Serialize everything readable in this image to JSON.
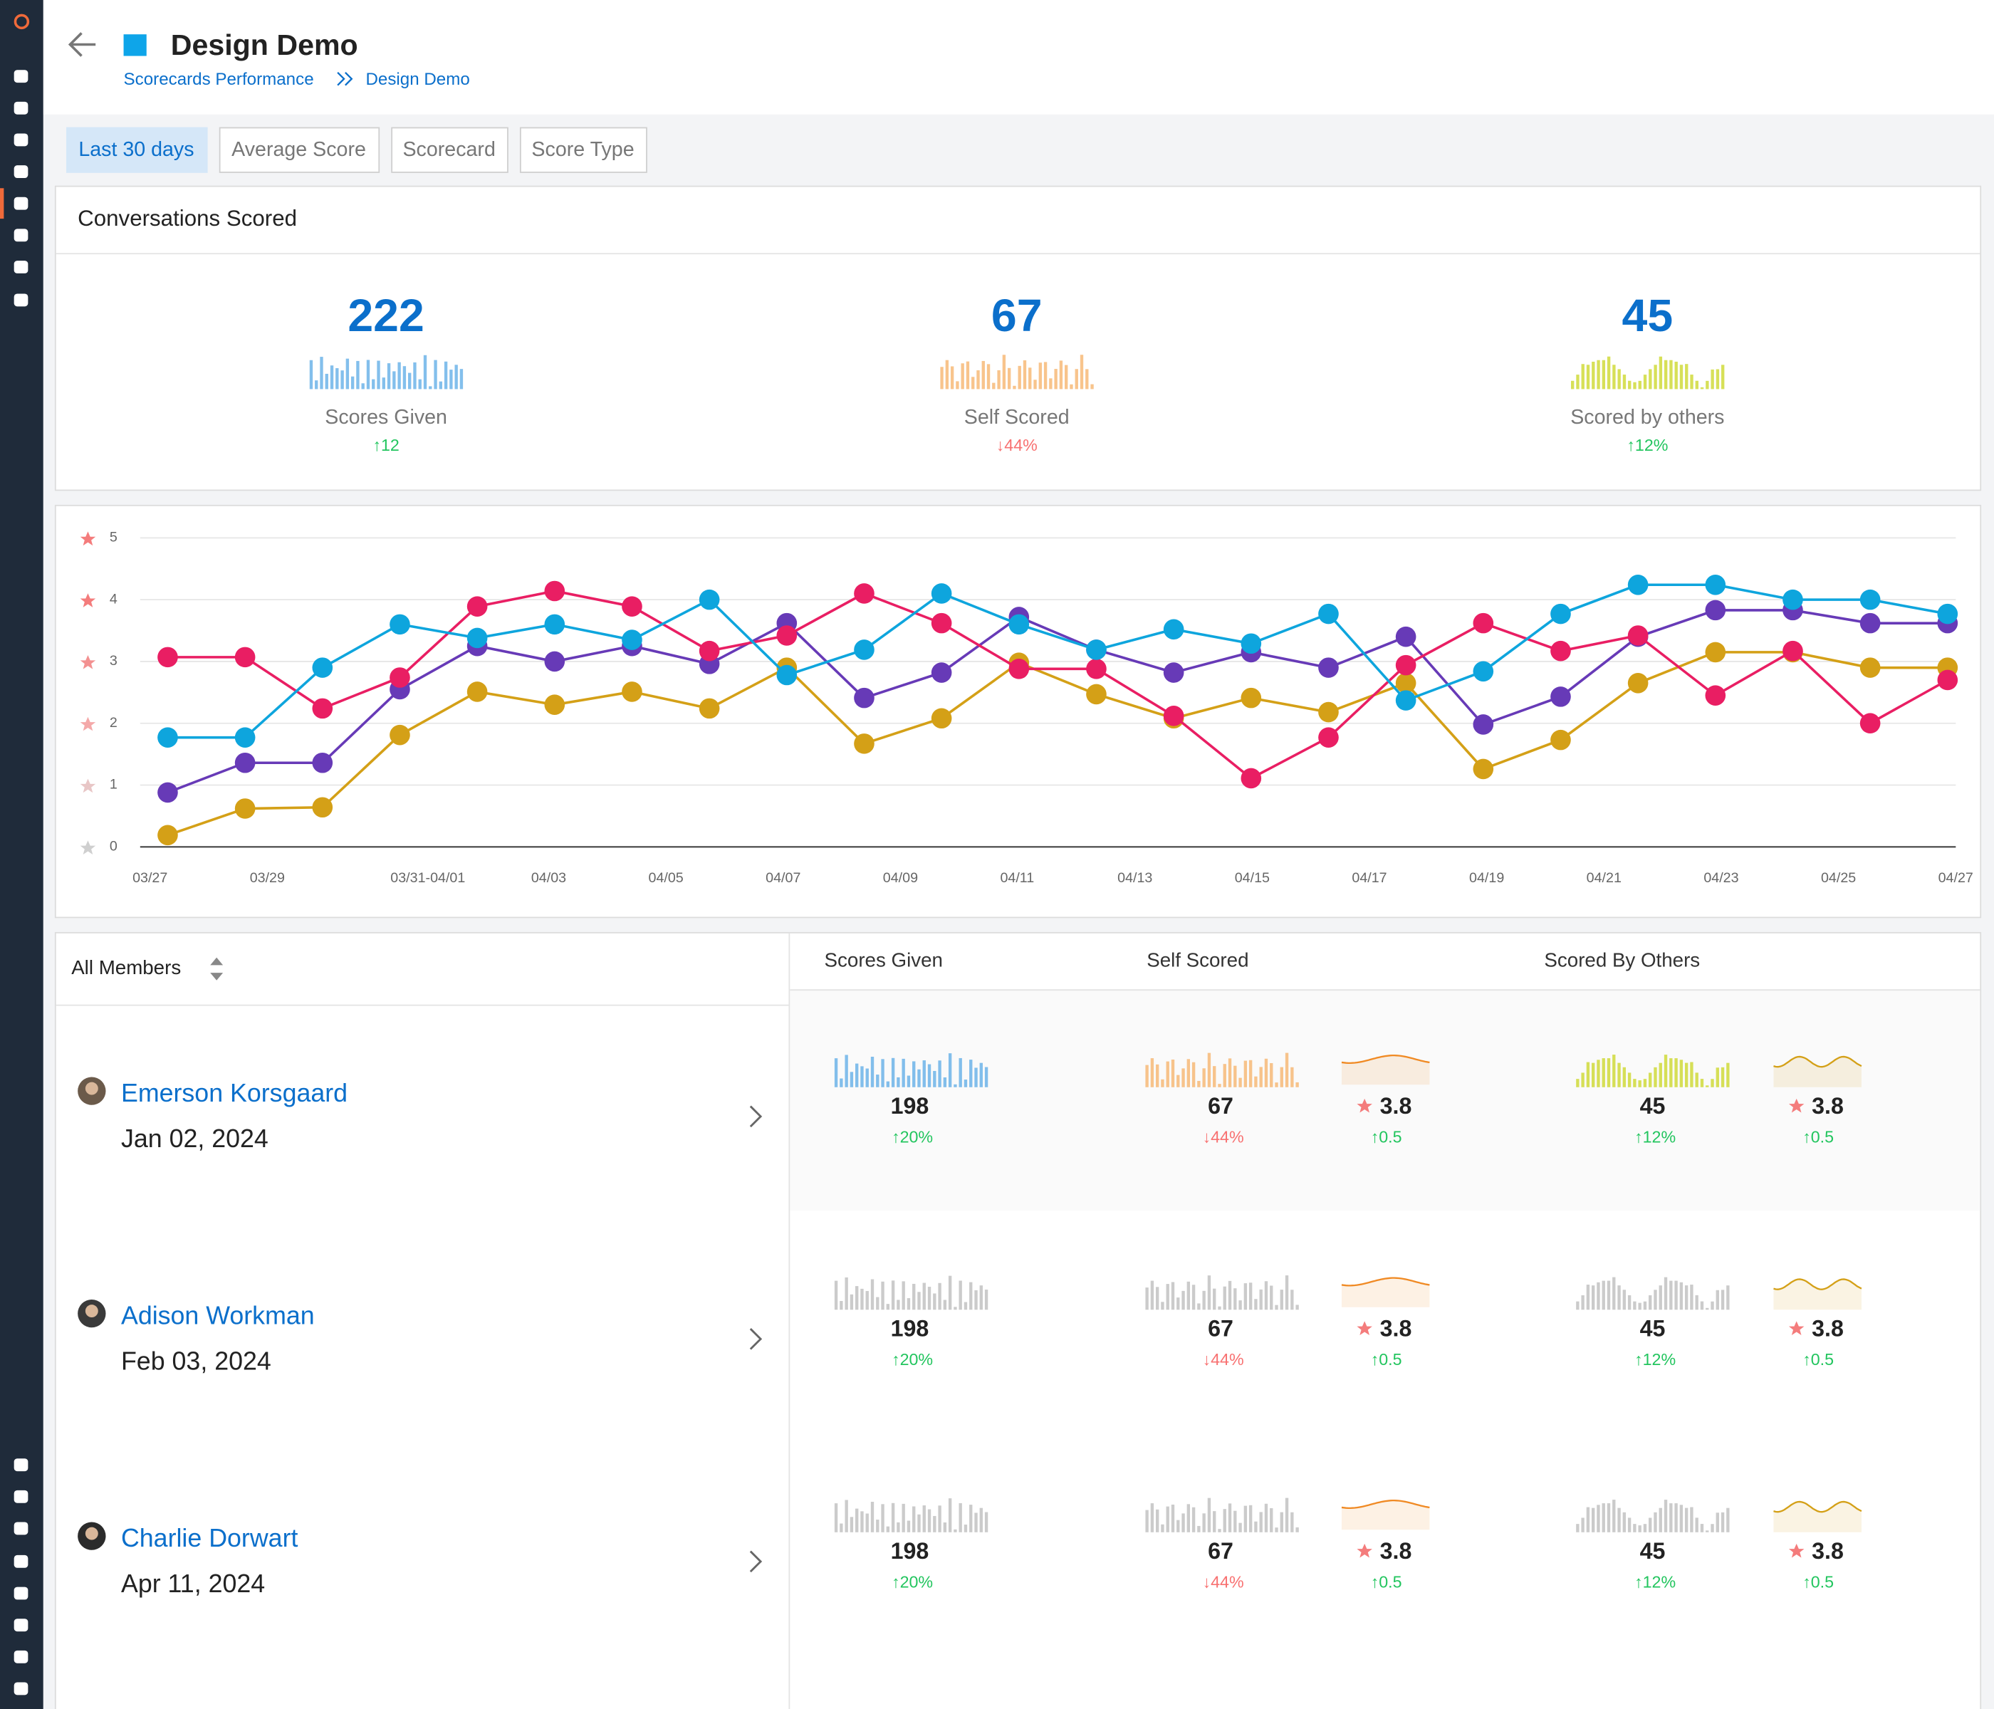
{
  "header": {
    "title": "Design Demo",
    "breadcrumb": [
      "Scorecards Performance",
      "Design Demo"
    ]
  },
  "filters": [
    "Last 30 days",
    "Average Score",
    "Scorecard",
    "Score Type"
  ],
  "summary": {
    "title": "Conversations Scored",
    "stats": [
      {
        "value": 222,
        "label": "Scores Given",
        "change": "↑12"
      },
      {
        "value": 67,
        "label": "Self Scored",
        "change": "↓44%"
      },
      {
        "value": 45,
        "label": "Scored by others",
        "change": "↑12%"
      }
    ]
  },
  "chart_data": {
    "type": "line",
    "x": [
      0.3,
      0.96,
      1.62,
      2.28,
      2.94,
      3.6,
      4.26,
      4.92,
      5.58,
      6.24,
      6.9,
      7.56,
      8.22,
      8.88,
      9.54,
      10.2,
      10.86,
      11.52,
      12.18,
      12.84,
      13.5,
      14.16,
      14.82,
      15.48
    ],
    "xlim": [
      0,
      15.55
    ],
    "xticks": [
      {
        "value": 0,
        "label": "03/27"
      },
      {
        "value": 1,
        "label": "03/29"
      },
      {
        "value": 2.2,
        "label": "03/31-04/01"
      },
      {
        "value": 3.4,
        "label": "04/03"
      },
      {
        "value": 4.4,
        "label": "04/05"
      },
      {
        "value": 5.4,
        "label": "04/07"
      },
      {
        "value": 6.4,
        "label": "04/09"
      },
      {
        "value": 7.4,
        "label": "04/11"
      },
      {
        "value": 8.4,
        "label": "04/13"
      },
      {
        "value": 9.4,
        "label": "04/15"
      },
      {
        "value": 10.4,
        "label": "04/17"
      },
      {
        "value": 11.4,
        "label": "04/19"
      },
      {
        "value": 12.4,
        "label": "04/21"
      },
      {
        "value": 13.4,
        "label": "04/23"
      },
      {
        "value": 14.4,
        "label": "04/25"
      },
      {
        "value": 15.4,
        "label": "04/27"
      }
    ],
    "ylim": [
      0,
      5
    ],
    "yticks": [
      0,
      1,
      2,
      3,
      4,
      5
    ],
    "grid": true,
    "series": [
      {
        "color": "#d4a017",
        "values": [
          0.19,
          0.62,
          0.64,
          1.81,
          2.51,
          2.3,
          2.51,
          2.24,
          2.9,
          1.67,
          2.08,
          2.98,
          2.47,
          2.08,
          2.41,
          2.18,
          2.65,
          1.26,
          1.73,
          2.65,
          3.15,
          3.15,
          2.9,
          2.9
        ]
      },
      {
        "color": "#673ab7",
        "values": [
          0.88,
          1.36,
          1.36,
          2.55,
          3.25,
          3.0,
          3.25,
          2.96,
          3.62,
          2.41,
          2.82,
          3.72,
          3.19,
          2.82,
          3.15,
          2.9,
          3.4,
          1.98,
          2.43,
          3.4,
          3.83,
          3.83,
          3.62,
          3.62
        ]
      },
      {
        "color": "#e91e63",
        "values": [
          3.07,
          3.07,
          2.24,
          2.74,
          3.89,
          4.14,
          3.89,
          3.17,
          3.42,
          4.1,
          3.62,
          2.88,
          2.88,
          2.12,
          1.11,
          1.77,
          2.94,
          3.62,
          3.17,
          3.42,
          2.45,
          3.17,
          2.0,
          2.7
        ]
      },
      {
        "color": "#0ea5dd",
        "values": [
          1.77,
          1.77,
          2.9,
          3.6,
          3.38,
          3.6,
          3.35,
          4.0,
          2.78,
          3.19,
          4.1,
          3.6,
          3.19,
          3.52,
          3.29,
          3.77,
          2.37,
          2.84,
          3.77,
          4.24,
          4.24,
          4.0,
          4.0,
          3.77
        ]
      }
    ]
  },
  "members": {
    "filter": "All Members",
    "columns": [
      "Scores Given",
      "Self Scored",
      "Scored By Others"
    ],
    "rows": [
      {
        "name": "Emerson Korsgaard",
        "date": "Jan 02, 2024",
        "scores_given": 198,
        "scores_given_change": "↑20%",
        "self_scored": 67,
        "self_scored_change": "↓44%",
        "self_rating": 3.8,
        "self_rating_change": "↑0.5",
        "others_scored": 45,
        "others_scored_change": "↑12%",
        "others_rating": 3.8,
        "others_rating_change": "↑0.5"
      },
      {
        "name": "Adison Workman",
        "date": "Feb 03, 2024",
        "scores_given": 198,
        "scores_given_change": "↑20%",
        "self_scored": 67,
        "self_scored_change": "↓44%",
        "self_rating": 3.8,
        "self_rating_change": "↑0.5",
        "others_scored": 45,
        "others_scored_change": "↑12%",
        "others_rating": 3.8,
        "others_rating_change": "↑0.5"
      },
      {
        "name": "Charlie Dorwart",
        "date": "Apr 11, 2024",
        "scores_given": 198,
        "scores_given_change": "↑20%",
        "self_scored": 67,
        "self_scored_change": "↓44%",
        "self_rating": 3.8,
        "self_rating_change": "↑0.5",
        "others_scored": 45,
        "others_scored_change": "↑12%",
        "others_rating": 3.8,
        "others_rating_change": "↑0.5"
      }
    ]
  }
}
